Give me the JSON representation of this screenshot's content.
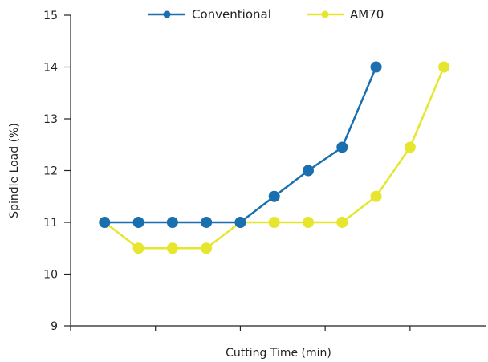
{
  "chart_data": {
    "type": "line",
    "xlabel": "Cutting Time (min)",
    "ylabel": "Spindle Load (%)",
    "ylim": [
      9,
      15
    ],
    "yticks": [
      9,
      10,
      11,
      12,
      13,
      14,
      15
    ],
    "legend_position": "top-center",
    "grid": false,
    "series": [
      {
        "name": "Conventional",
        "color": "#1a6faf",
        "x": [
          0.4,
          0.8,
          1.2,
          1.6,
          2.0,
          2.4,
          2.8,
          3.2,
          3.6
        ],
        "values": [
          11.0,
          11.0,
          11.0,
          11.0,
          11.0,
          11.5,
          12.0,
          12.45,
          14.0
        ]
      },
      {
        "name": "AM70",
        "color": "#e6e62e",
        "x": [
          0.4,
          0.8,
          1.2,
          1.6,
          2.0,
          2.4,
          2.8,
          3.2,
          3.6,
          4.0,
          4.4
        ],
        "values": [
          11.0,
          10.5,
          10.5,
          10.5,
          11.0,
          11.0,
          11.0,
          11.0,
          11.5,
          12.45,
          14.0
        ]
      }
    ]
  }
}
